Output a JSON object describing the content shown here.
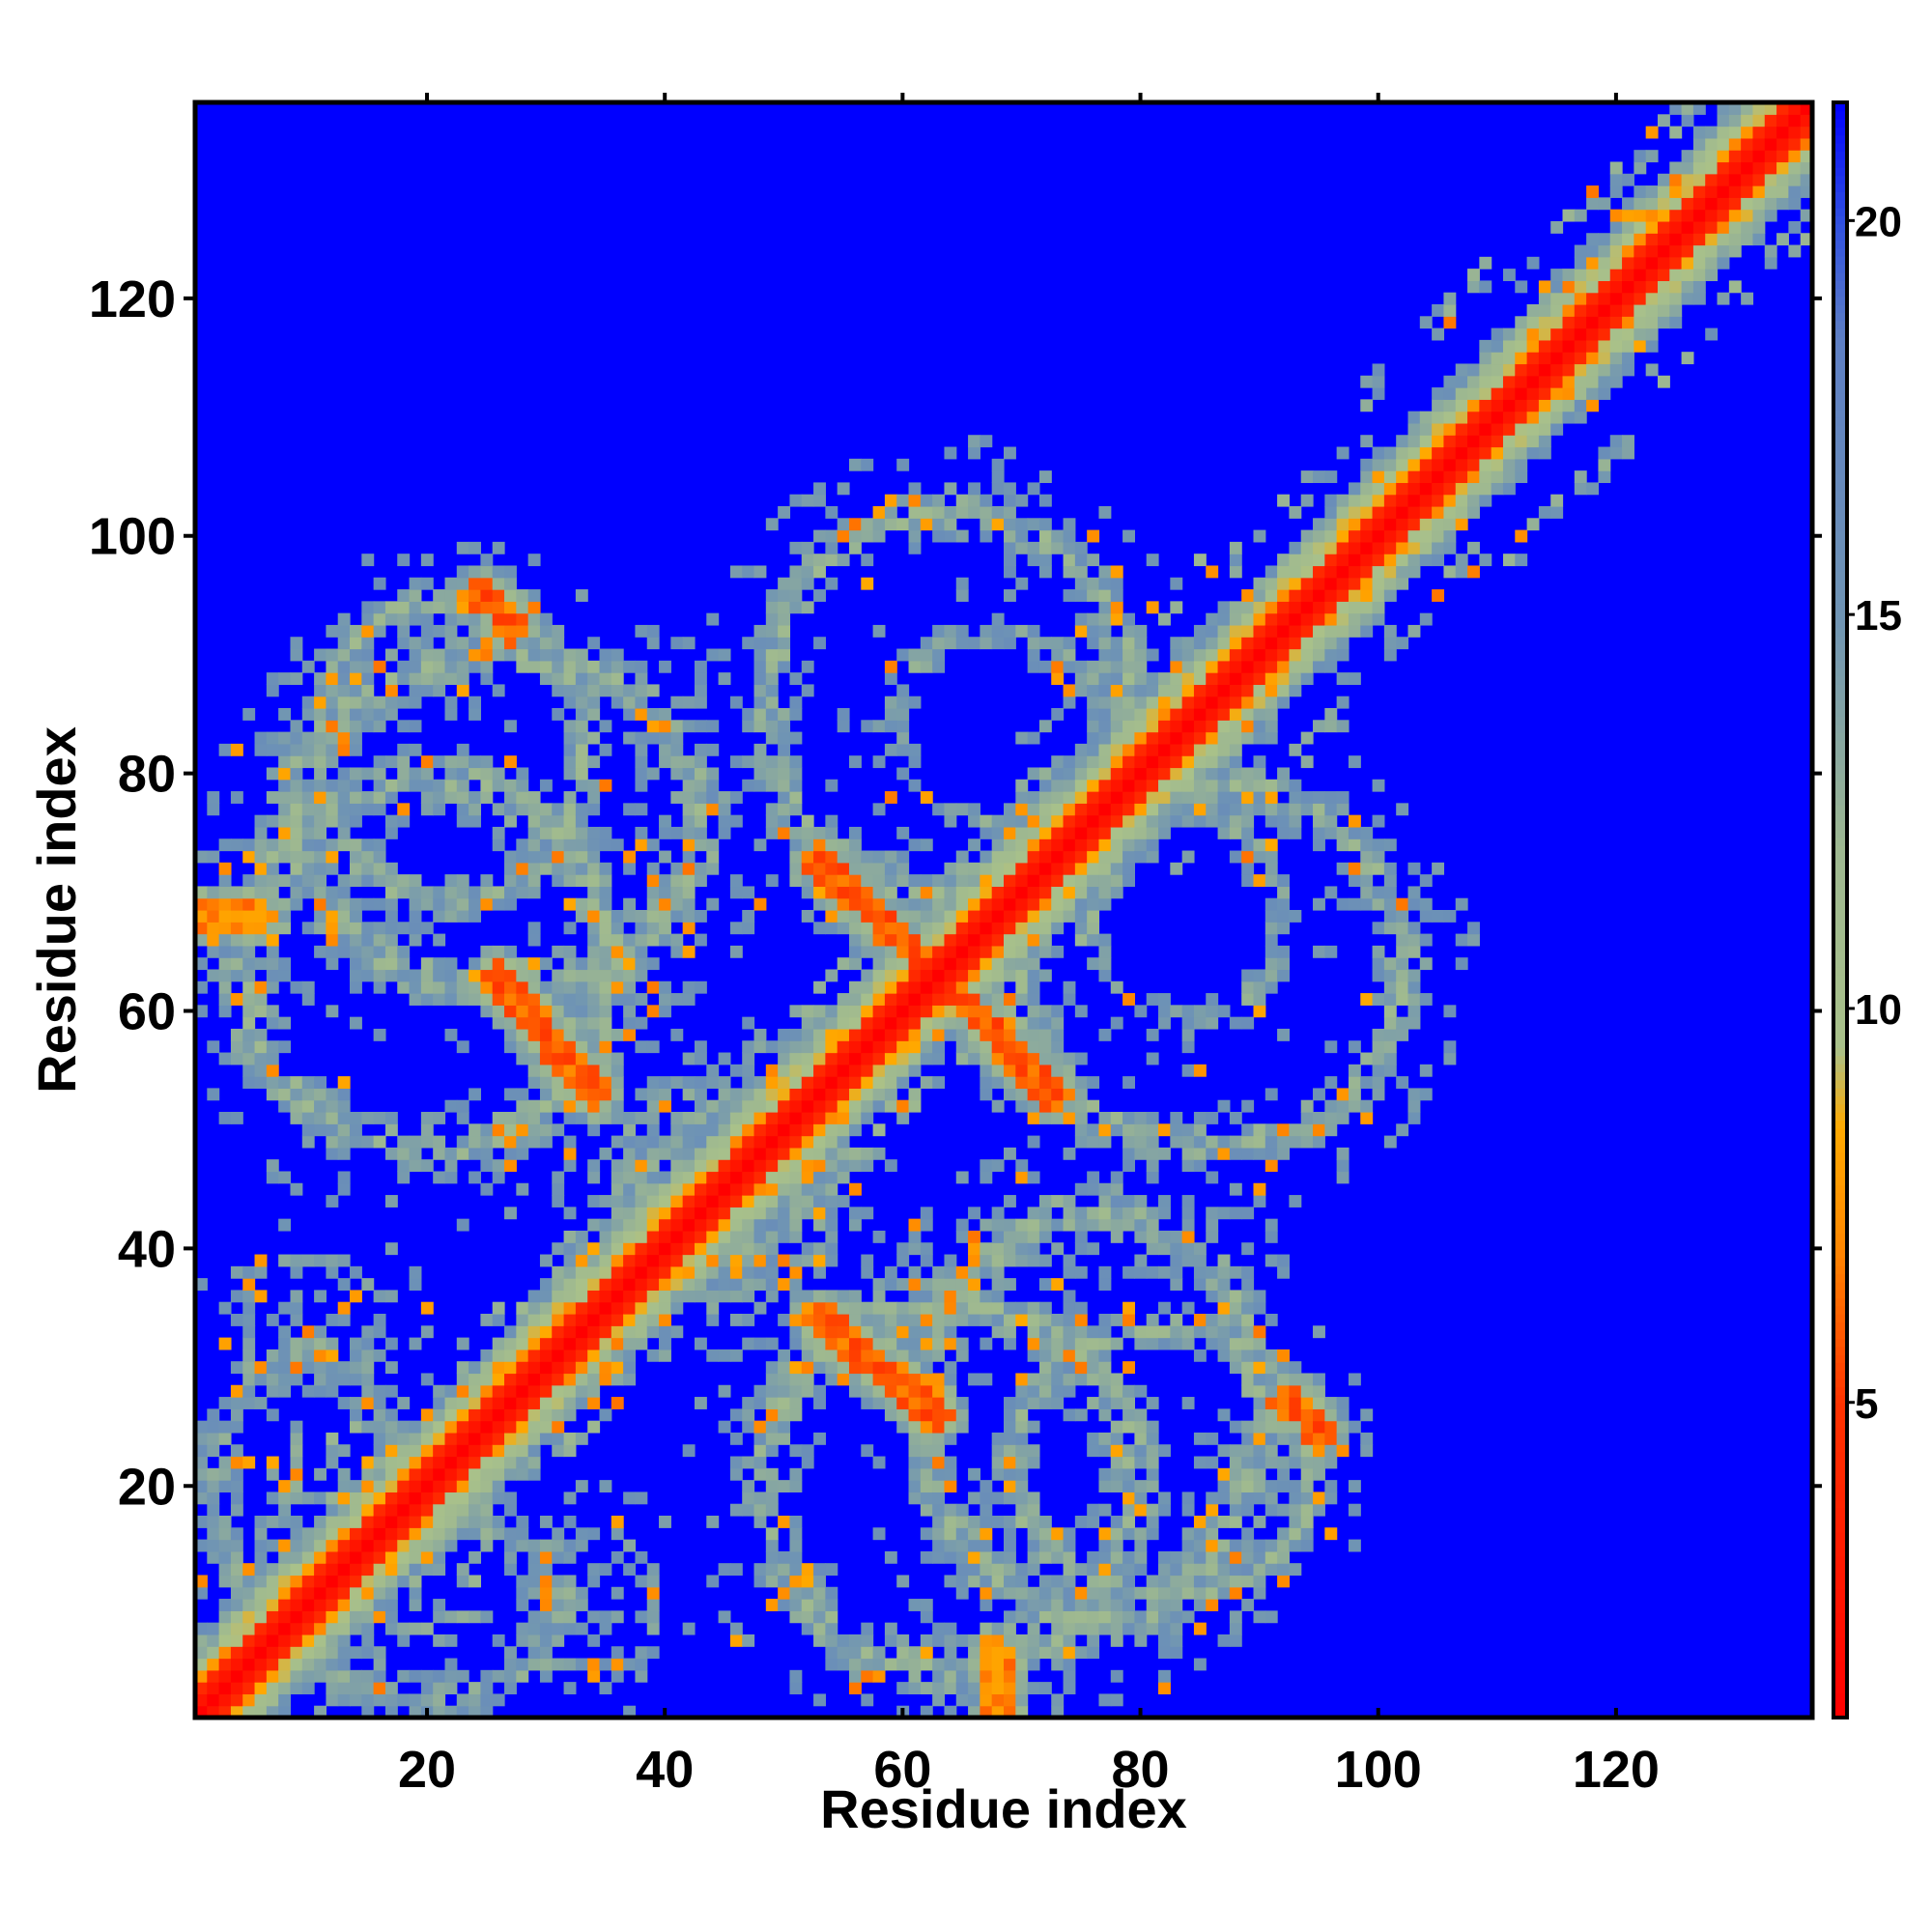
{
  "chart_data": {
    "type": "heatmap",
    "title": "",
    "xlabel": "Residue index",
    "ylabel": "Residue index",
    "n_residues": 136,
    "xlim": [
      1,
      136
    ],
    "ylim": [
      1,
      136
    ],
    "x_ticks": [
      20,
      40,
      60,
      80,
      100,
      120
    ],
    "y_ticks": [
      20,
      40,
      60,
      80,
      100,
      120
    ],
    "colorbar": {
      "position": "right",
      "range": [
        1,
        21.5
      ],
      "ticks": [
        5,
        10,
        15,
        20
      ],
      "saturate_above": 16,
      "stops": [
        {
          "value": 1,
          "color": "#ff0000"
        },
        {
          "value": 5,
          "color": "#ff3300"
        },
        {
          "value": 7,
          "color": "#ff8800"
        },
        {
          "value": 8.5,
          "color": "#ffaa00"
        },
        {
          "value": 9.5,
          "color": "#a9c18a"
        },
        {
          "value": 12,
          "color": "#9eb890"
        },
        {
          "value": 15,
          "color": "#6f94b4"
        },
        {
          "value": 18.5,
          "color": "#5e7fc4"
        },
        {
          "value": 20,
          "color": "#3050e0"
        },
        {
          "value": 21.5,
          "color": "#0000ff"
        }
      ]
    },
    "background_color": "#0000ff",
    "diagonal_band_width": 2.5,
    "diagonal_spread": [
      {
        "from": 1,
        "to": 20,
        "width": 6
      },
      {
        "from": 20,
        "to": 40,
        "width": 3
      },
      {
        "from": 40,
        "to": 60,
        "width": 3
      },
      {
        "from": 60,
        "to": 76,
        "width": 3
      },
      {
        "from": 76,
        "to": 92,
        "width": 7
      },
      {
        "from": 92,
        "to": 104,
        "width": 5
      },
      {
        "from": 104,
        "to": 116,
        "width": 8
      },
      {
        "from": 116,
        "to": 136,
        "width": 5
      }
    ],
    "contact_regions": [
      {
        "cx": 26,
        "cy": 76,
        "rx": 22,
        "ry": 18,
        "ring": 0.55,
        "min_distance": 11
      },
      {
        "cx": 86,
        "cy": 64,
        "rx": 20,
        "ry": 19,
        "ring": 0.6,
        "min_distance": 11
      },
      {
        "cx": 68,
        "cy": 84,
        "rx": 12,
        "ry": 11,
        "ring": 0.45,
        "min_distance": 12
      },
      {
        "cx": 64,
        "cy": 20,
        "rx": 20,
        "ry": 20,
        "ring": 0.55,
        "min_distance": 11
      },
      {
        "cx": 82,
        "cy": 22,
        "rx": 16,
        "ry": 14,
        "ring": 0.6,
        "min_distance": 11
      },
      {
        "cx": 20,
        "cy": 10,
        "rx": 18,
        "ry": 12,
        "ring": 0.3,
        "min_distance": 12
      },
      {
        "cx": 10,
        "cy": 34,
        "rx": 9,
        "ry": 8,
        "ring": 0.3,
        "min_distance": 13
      },
      {
        "cx": 44,
        "cy": 46,
        "rx": 12,
        "ry": 12,
        "ring": 0.3,
        "min_distance": 12
      }
    ],
    "antiparallel_strands": [
      {
        "x1": 26,
        "y1": 63,
        "x2": 34,
        "y2": 54,
        "min_distance": 5
      },
      {
        "x1": 53,
        "y1": 73,
        "x2": 63,
        "y2": 63,
        "min_distance": 5
      },
      {
        "x1": 65,
        "y1": 61,
        "x2": 72,
        "y2": 53,
        "min_distance": 5
      },
      {
        "x1": 53,
        "y1": 34,
        "x2": 62,
        "y2": 26,
        "min_distance": 5
      },
      {
        "x1": 1,
        "y1": 68,
        "x2": 6,
        "y2": 68,
        "min_distance": 6
      },
      {
        "x1": 24,
        "y1": 95,
        "x2": 27,
        "y2": 93,
        "min_distance": 5
      },
      {
        "x1": 92,
        "y1": 27,
        "x2": 95,
        "y2": 25,
        "min_distance": 5
      }
    ]
  }
}
